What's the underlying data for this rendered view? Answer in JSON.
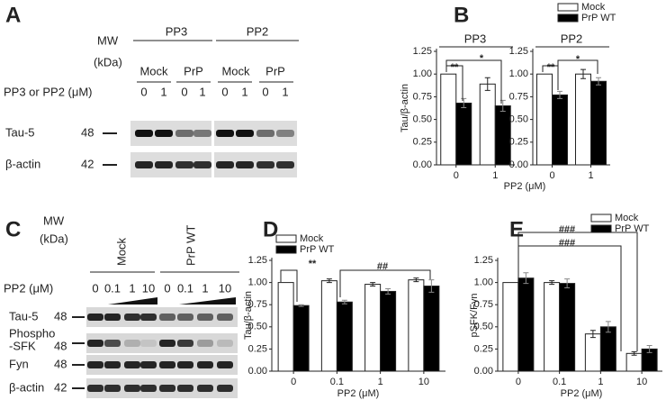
{
  "panel_letters": [
    "A",
    "B",
    "C",
    "D",
    "E"
  ],
  "blot_a": {
    "mw": "MW",
    "kda": "(kDa)",
    "groups": [
      "PP3",
      "PP2"
    ],
    "lanes": [
      "Mock",
      "PrP",
      "Mock",
      "PrP"
    ],
    "treatment": "PP3 or PP2 (μM)",
    "doses": [
      "0",
      "1",
      "0",
      "1",
      "0",
      "1",
      "0",
      "1"
    ],
    "rows": [
      {
        "label": [
          "Tau-5"
        ],
        "mw": "48"
      },
      {
        "label": [
          "β-actin"
        ],
        "mw": "42"
      }
    ]
  },
  "blot_c": {
    "mw": "MW",
    "kda": "(kDa)",
    "groups": [
      "Mock",
      "PrP WT"
    ],
    "treatment": "PP2 (μM)",
    "doses": [
      "0",
      "0.1",
      "1",
      "10",
      "0",
      "0.1",
      "1",
      "10"
    ],
    "rows": [
      {
        "label": [
          "Tau-5"
        ],
        "mw": "48"
      },
      {
        "label": [
          "Phospho",
          "-SFK"
        ],
        "mw": "48"
      },
      {
        "label": [
          "Fyn"
        ],
        "mw": "48"
      },
      {
        "label": [
          "β-actin"
        ],
        "mw": "42"
      }
    ]
  },
  "chart_data": [
    {
      "type": "bar",
      "title": "PP3",
      "y_label": "Tau/β-actin",
      "x_label": "PP2 (μM)",
      "categories": [
        "0",
        "1"
      ],
      "series": [
        {
          "name": "Mock",
          "color": "#ffffff",
          "values": [
            1.0,
            0.89
          ],
          "errors": [
            0,
            0.07
          ]
        },
        {
          "name": "PrP WT",
          "color": "#000000",
          "values": [
            0.68,
            0.65
          ],
          "errors": [
            0.05,
            0.06
          ]
        }
      ],
      "ylim": [
        0,
        1.25
      ],
      "yticks": [
        {
          "value": 0,
          "label": "0.00"
        },
        {
          "value": 0.25,
          "label": "0.25"
        },
        {
          "value": 0.5,
          "label": "0.50"
        },
        {
          "value": 0.75,
          "label": "0.75"
        },
        {
          "value": 1,
          "label": "1.00"
        },
        {
          "value": 1.25,
          "label": "1.25"
        }
      ],
      "annotations": [
        "**",
        "*"
      ]
    },
    {
      "type": "bar",
      "title": "PP2",
      "categories": [
        "0",
        "1"
      ],
      "legend": true,
      "series": [
        {
          "name": "Mock",
          "color": "#ffffff",
          "values": [
            1.0,
            1.0
          ],
          "errors": [
            0,
            0.05
          ]
        },
        {
          "name": "PrP WT",
          "color": "#000000",
          "values": [
            0.77,
            0.92
          ],
          "errors": [
            0.04,
            0.04
          ]
        }
      ],
      "ylim": [
        0,
        1.25
      ],
      "yticks": [
        {
          "value": 0,
          "label": "0.00"
        },
        {
          "value": 0.25,
          "label": "0.25"
        },
        {
          "value": 0.5,
          "label": "0.50"
        },
        {
          "value": 0.75,
          "label": "0.75"
        },
        {
          "value": 1,
          "label": "1.00"
        },
        {
          "value": 1.25,
          "label": "1.25"
        }
      ],
      "annotations": [
        "**",
        "*"
      ]
    },
    {
      "type": "bar",
      "y_label": "Tau/β-actin",
      "x_label": "PP2 (μM)",
      "categories": [
        "0",
        "0.1",
        "1",
        "10"
      ],
      "legend": true,
      "series": [
        {
          "name": "Mock",
          "color": "#ffffff",
          "values": [
            1.0,
            1.02,
            0.98,
            1.03
          ],
          "errors": [
            0,
            0.02,
            0.02,
            0.02
          ]
        },
        {
          "name": "PrP WT",
          "color": "#000000",
          "values": [
            0.74,
            0.78,
            0.9,
            0.96
          ],
          "errors": [
            0.01,
            0.02,
            0.03,
            0.07
          ]
        }
      ],
      "ylim": [
        0,
        1.25
      ],
      "yticks": [
        {
          "value": 0,
          "label": "0.00"
        },
        {
          "value": 0.25,
          "label": "0.25"
        },
        {
          "value": 0.5,
          "label": "0.50"
        },
        {
          "value": 0.75,
          "label": "0.75"
        },
        {
          "value": 1,
          "label": "1.00"
        },
        {
          "value": 1.25,
          "label": "1.25"
        }
      ],
      "annotations": [
        "**",
        "##"
      ]
    },
    {
      "type": "bar",
      "y_label": "pSFK/Fyn",
      "x_label": "PP2 (μM)",
      "categories": [
        "0",
        "0.1",
        "1",
        "10"
      ],
      "legend": true,
      "series": [
        {
          "name": "Mock",
          "color": "#ffffff",
          "values": [
            1.0,
            1.0,
            0.42,
            0.2
          ],
          "errors": [
            0,
            0.02,
            0.04,
            0.02
          ]
        },
        {
          "name": "PrP WT",
          "color": "#000000",
          "values": [
            1.05,
            0.99,
            0.5,
            0.25
          ],
          "errors": [
            0.06,
            0.05,
            0.06,
            0.04
          ]
        }
      ],
      "ylim": [
        0,
        1.25
      ],
      "yticks": [
        {
          "value": 0,
          "label": "0.00"
        },
        {
          "value": 0.25,
          "label": "0.25"
        },
        {
          "value": 0.5,
          "label": "0.50"
        },
        {
          "value": 0.75,
          "label": "0.75"
        },
        {
          "value": 1,
          "label": "1.00"
        },
        {
          "value": 1.25,
          "label": "1.25"
        }
      ],
      "annotations": [
        "###",
        "###"
      ]
    }
  ]
}
